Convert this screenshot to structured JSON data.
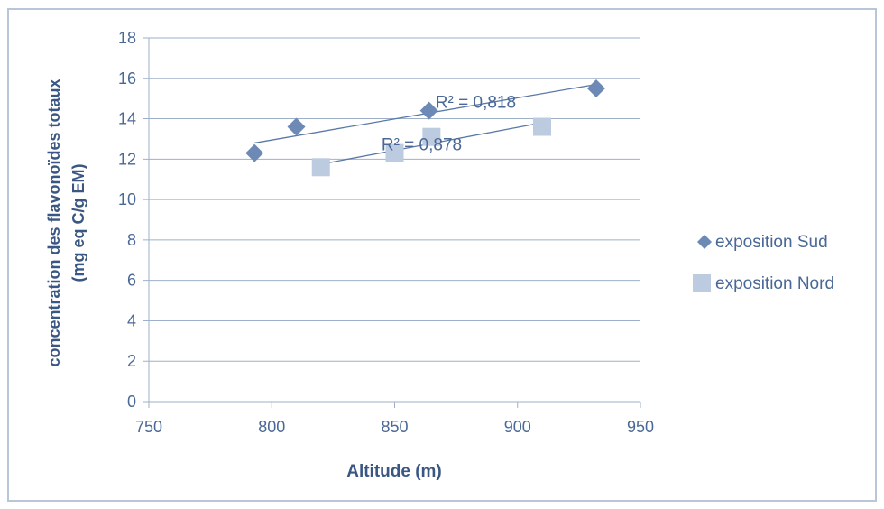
{
  "chart_data": {
    "type": "scatter",
    "title": "",
    "xlabel": "Altitude (m)",
    "ylabel_line1": "concentration des flavonoïdes totaux",
    "ylabel_line2": "(mg eq C/g EM)",
    "xlim": [
      750,
      950
    ],
    "ylim": [
      0,
      18
    ],
    "xticks": [
      "750",
      "800",
      "850",
      "900",
      "950"
    ],
    "yticks": [
      "0",
      "2",
      "4",
      "6",
      "8",
      "10",
      "12",
      "14",
      "16",
      "18"
    ],
    "grid": "horizontal",
    "legend_position": "right",
    "series": [
      {
        "name": "exposition Sud",
        "marker": "diamond",
        "color": "#6d8ab7",
        "trendline_color": "#5a79a8",
        "points": [
          [
            793,
            12.3
          ],
          [
            810,
            13.6
          ],
          [
            864,
            14.4
          ],
          [
            932,
            15.5
          ]
        ],
        "trendline": [
          [
            793,
            12.8
          ],
          [
            932,
            15.7
          ]
        ],
        "r2_label": "R² = 0,818",
        "r2_anchor": [
          883,
          14.85
        ]
      },
      {
        "name": "exposition Nord",
        "marker": "square",
        "color": "#bccbe0",
        "trendline_color": "#5a79a8",
        "points": [
          [
            820,
            11.6
          ],
          [
            850,
            12.3
          ],
          [
            865,
            13.1
          ],
          [
            910,
            13.6
          ]
        ],
        "trendline": [
          [
            820,
            11.75
          ],
          [
            910,
            13.8
          ]
        ],
        "r2_label": "R² = 0,878",
        "r2_anchor": [
          861,
          12.75
        ]
      }
    ]
  },
  "colors": {
    "frame": "#b9c6d8",
    "grid": "#9eb0c9",
    "axis_text": "#4a6896",
    "label_text": "#3a5783",
    "legend_text": "#4a6896"
  }
}
